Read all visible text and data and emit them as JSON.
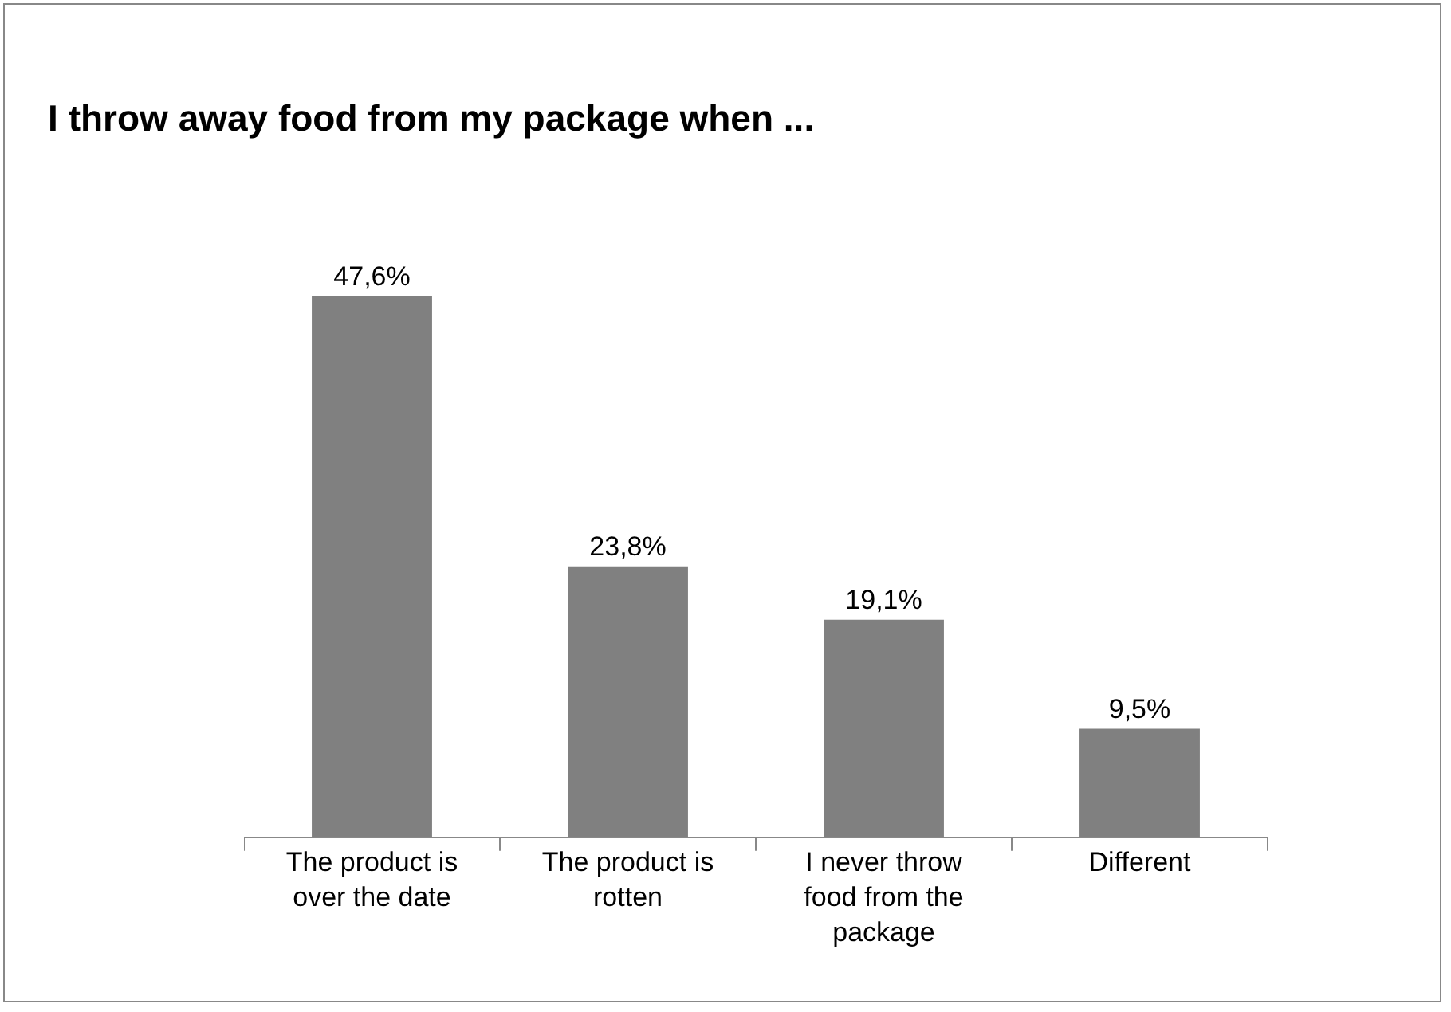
{
  "chart_data": {
    "type": "bar",
    "title": "I throw away food from my package when ...",
    "categories": [
      "The product is over the date",
      "The product is rotten",
      "I never throw food from the package",
      "Different"
    ],
    "values": [
      47.6,
      23.8,
      19.1,
      9.5
    ],
    "value_labels": [
      "47,6%",
      "23,8%",
      "19,1%",
      "9,5%"
    ],
    "color": "#808080",
    "grid": false,
    "legend": false
  }
}
